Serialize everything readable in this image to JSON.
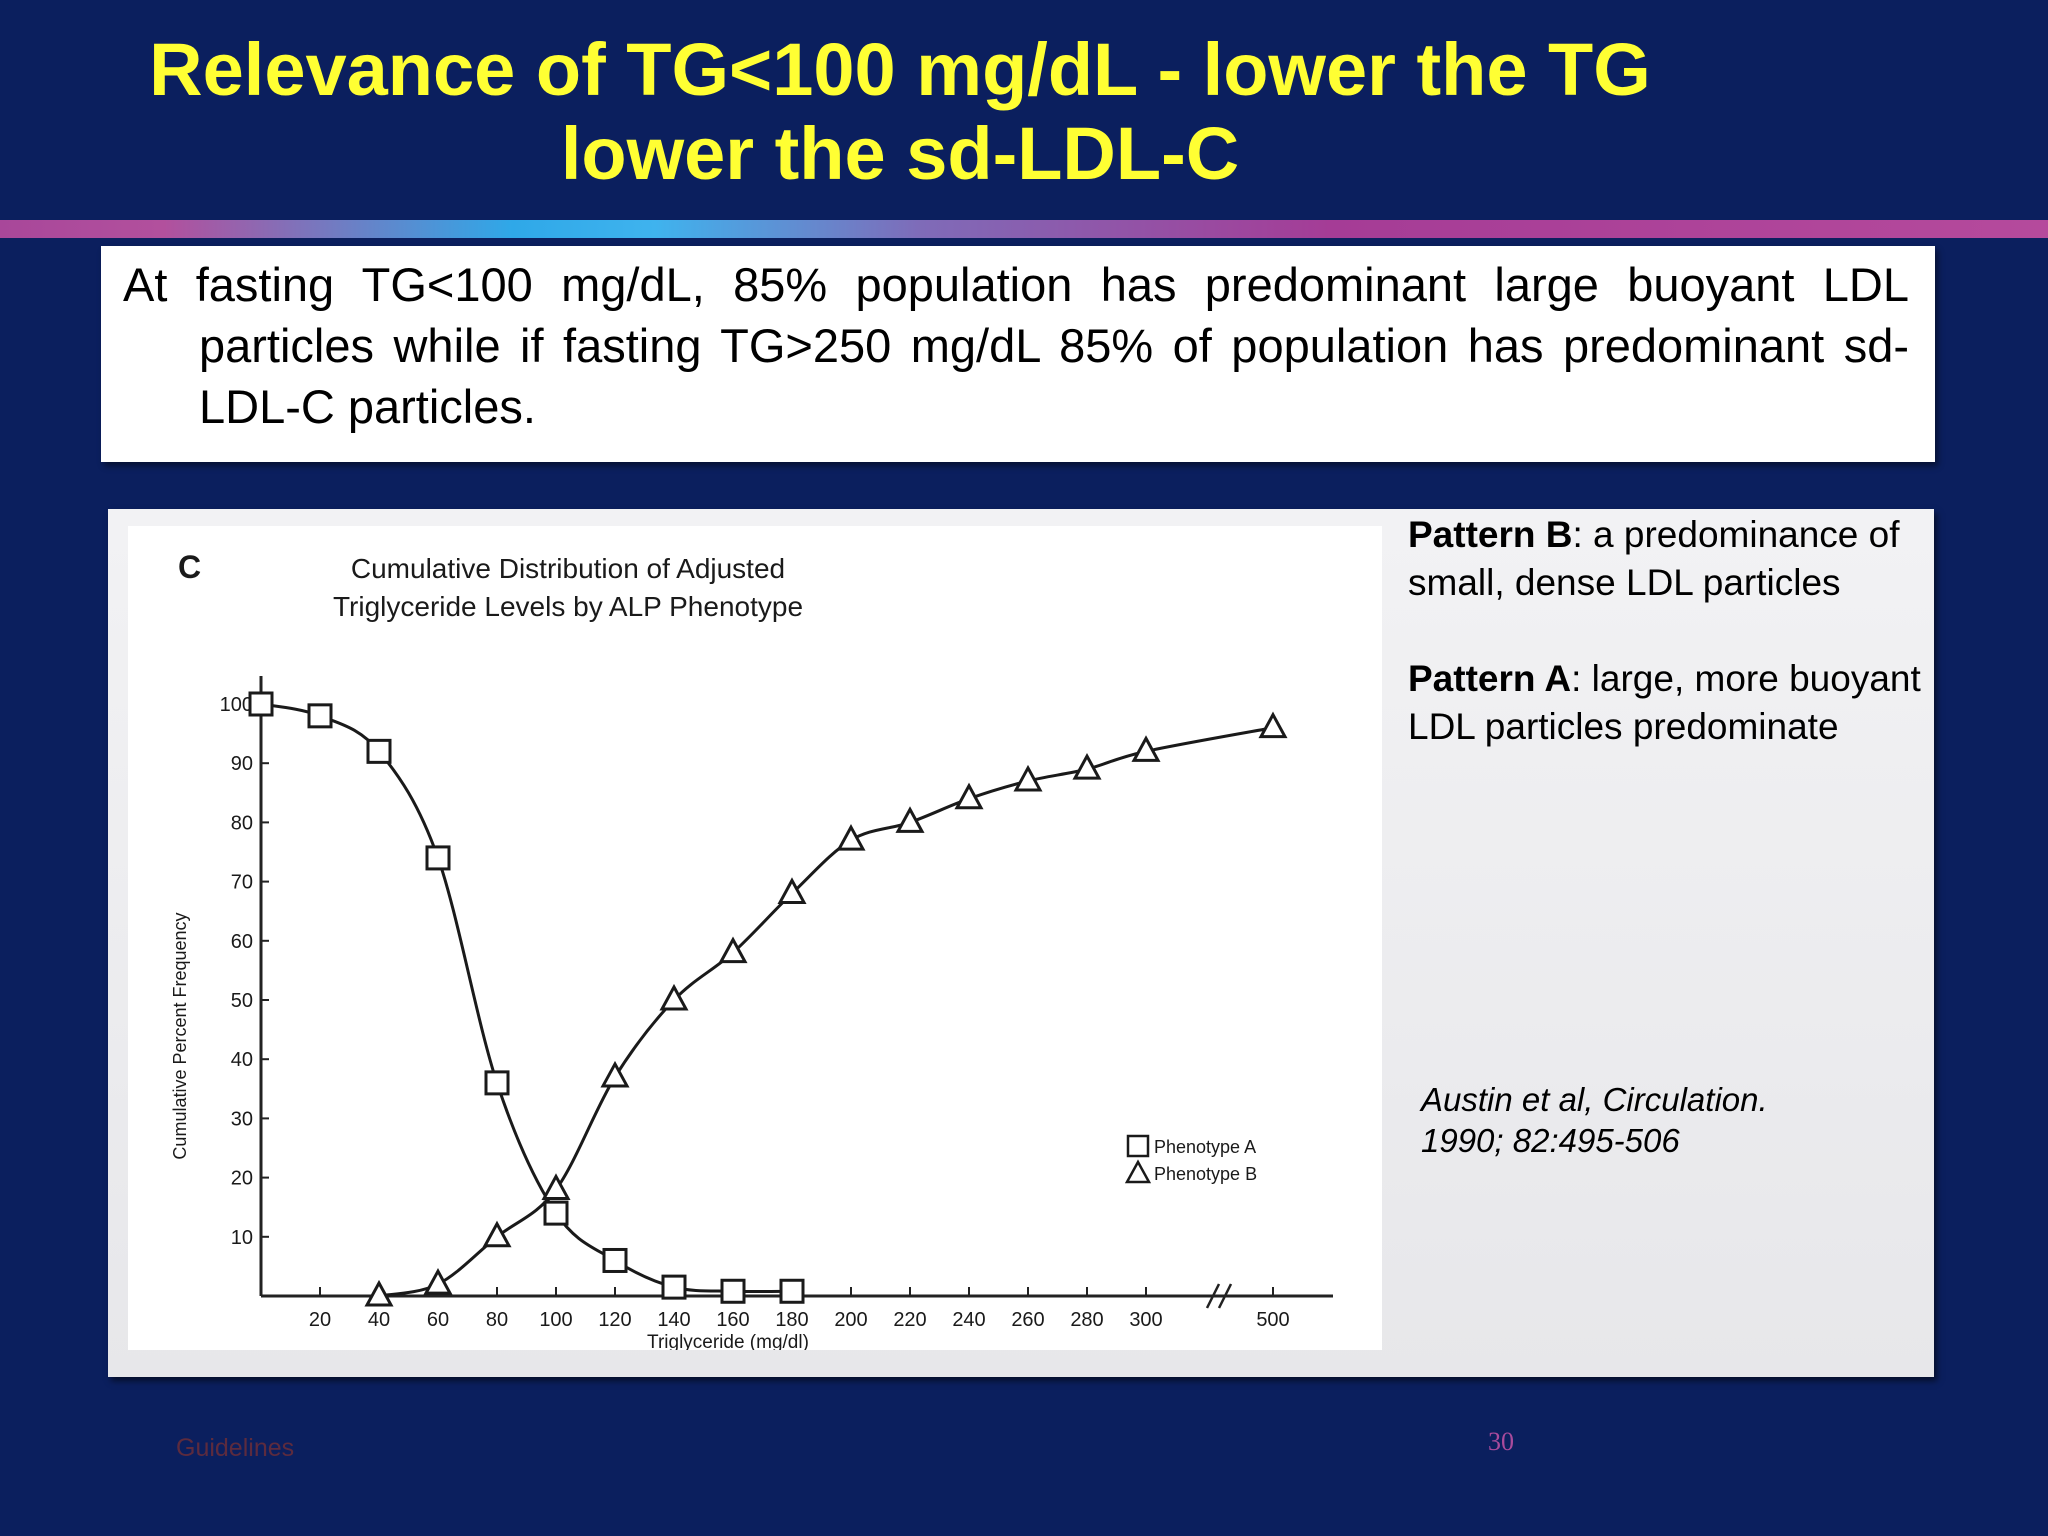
{
  "slide": {
    "title_line1": "Relevance of TG<100 mg/dL - lower the TG",
    "title_line2": "lower the sd-LDL-C",
    "summary": "At fasting TG<100 mg/dL, 85% population has predominant large buoyant LDL particles while if fasting TG>250 mg/dL 85% of population has predominant sd-LDL-C particles.",
    "pattern_b_label": "Pattern B",
    "pattern_b_text": ": a predominance of small, dense LDL particles",
    "pattern_a_label": "Pattern A",
    "pattern_a_text": ": large, more buoyant LDL particles predominate",
    "citation_line1": "Austin et al, Circulation.",
    "citation_line2": "1990; 82:495-506",
    "footer": "Guidelines",
    "page_number": "30"
  },
  "chart_data": {
    "type": "line",
    "panel_letter": "C",
    "title_line1": "Cumulative Distribution of Adjusted",
    "title_line2": "Triglyceride Levels by ALP Phenotype",
    "xlabel": "Triglyceride (mg/dl)",
    "ylabel": "Cumulative Percent Frequency",
    "x_ticks": [
      "20",
      "40",
      "60",
      "80",
      "100",
      "120",
      "140",
      "160",
      "180",
      "200",
      "220",
      "240",
      "260",
      "280",
      "300",
      "500"
    ],
    "y_ticks": [
      "100",
      "90",
      "80",
      "70",
      "60",
      "50",
      "40",
      "30",
      "20",
      "10"
    ],
    "axis_break_after": "300",
    "legend_position": "bottom-right",
    "series": [
      {
        "name": "Phenotype A",
        "marker": "square",
        "points": [
          [
            "0",
            100
          ],
          [
            "20",
            98
          ],
          [
            "40",
            92
          ],
          [
            "60",
            74
          ],
          [
            "80",
            36
          ],
          [
            "100",
            14
          ],
          [
            "120",
            6
          ],
          [
            "140",
            1.5
          ],
          [
            "160",
            0.8
          ],
          [
            "180",
            0.8
          ]
        ]
      },
      {
        "name": "Phenotype B",
        "marker": "triangle",
        "points": [
          [
            "40",
            0
          ],
          [
            "60",
            2
          ],
          [
            "80",
            10
          ],
          [
            "100",
            18
          ],
          [
            "120",
            37
          ],
          [
            "140",
            50
          ],
          [
            "160",
            58
          ],
          [
            "180",
            68
          ],
          [
            "200",
            77
          ],
          [
            "220",
            80
          ],
          [
            "240",
            84
          ],
          [
            "260",
            87
          ],
          [
            "280",
            89
          ],
          [
            "300",
            92
          ],
          [
            "500",
            96
          ]
        ]
      }
    ]
  }
}
